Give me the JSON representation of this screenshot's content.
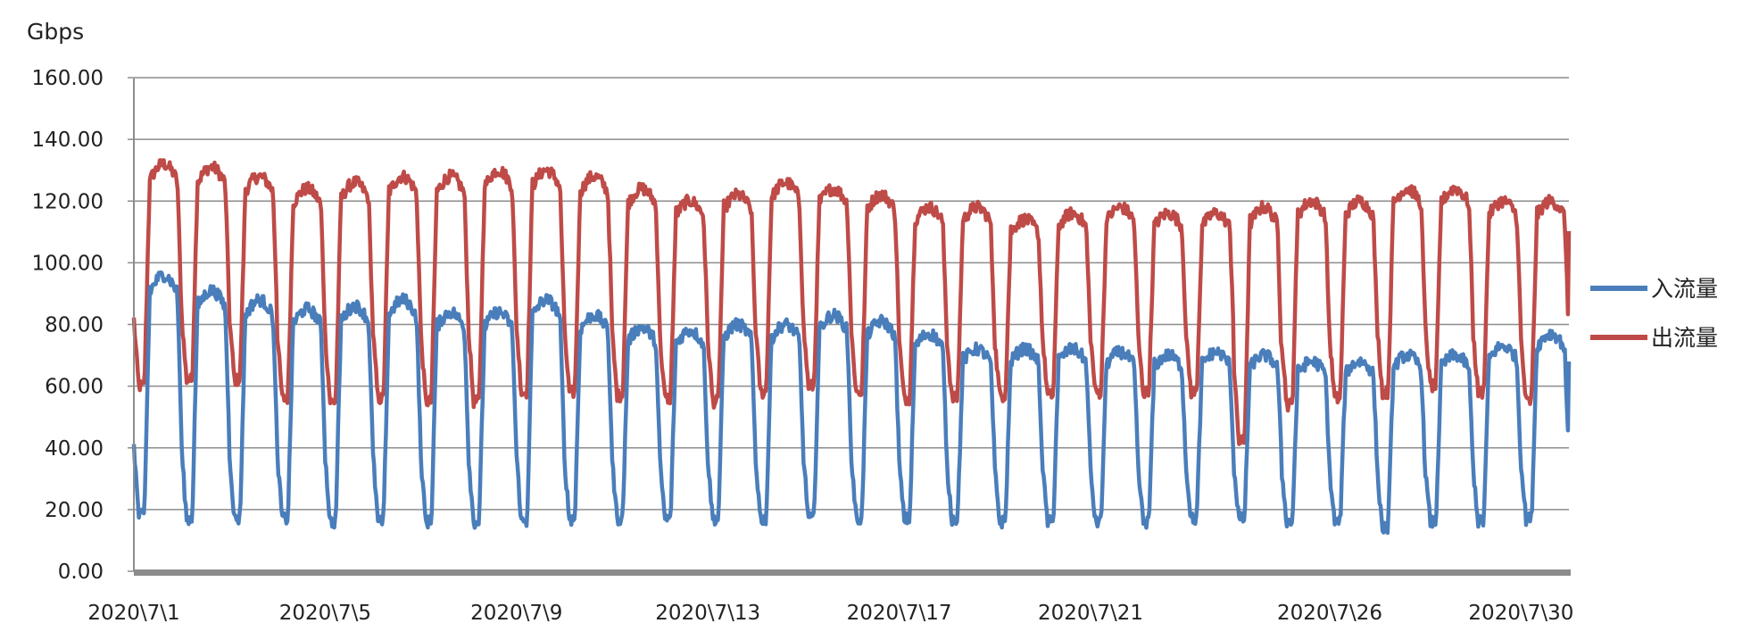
{
  "chart_data": {
    "type": "line",
    "ylabel": "Gbps",
    "ylim": [
      0,
      160
    ],
    "ytick_values": [
      0,
      20,
      40,
      60,
      80,
      100,
      120,
      140,
      160
    ],
    "ytick_labels": [
      "0.00",
      "20.00",
      "40.00",
      "60.00",
      "80.00",
      "100.00",
      "120.00",
      "140.00",
      "160.00"
    ],
    "xtick_days": [
      1,
      5,
      9,
      13,
      17,
      21,
      26,
      30
    ],
    "xtick_labels": [
      "2020\\7\\1",
      "2020\\7\\5",
      "2020\\7\\9",
      "2020\\7\\13",
      "2020\\7\\17",
      "2020\\7\\21",
      "2020\\7\\26",
      "2020\\7\\30"
    ],
    "xlim": [
      1,
      31
    ],
    "grid": "horizontal",
    "legend_position": "right",
    "series": [
      {
        "name": "入流量",
        "color": "#4a7ebb",
        "daily_peak": [
          96,
          91,
          88,
          85,
          86,
          88,
          84,
          84,
          88,
          83,
          79,
          78,
          80,
          80,
          83,
          81,
          77,
          72,
          72,
          72,
          71,
          70,
          71,
          70,
          68,
          68,
          70,
          70,
          73,
          77
        ],
        "daily_trough": [
          18,
          17,
          17,
          17,
          16,
          16,
          16,
          16,
          16,
          17,
          17,
          17,
          17,
          17,
          17,
          17,
          17,
          17,
          16,
          16,
          16,
          16,
          17,
          17,
          16,
          16,
          14,
          16,
          16,
          17
        ]
      },
      {
        "name": "出流量",
        "color": "#be4b48",
        "daily_peak": [
          132,
          131,
          128,
          124,
          126,
          128,
          128,
          130,
          130,
          128,
          124,
          120,
          122,
          126,
          124,
          122,
          118,
          118,
          114,
          116,
          118,
          116,
          116,
          118,
          120,
          120,
          124,
          124,
          120,
          120
        ],
        "daily_trough": [
          60,
          62,
          62,
          56,
          55,
          56,
          55,
          55,
          58,
          58,
          57,
          56,
          55,
          58,
          60,
          58,
          56,
          56,
          57,
          57,
          58,
          58,
          58,
          42,
          54,
          56,
          58,
          60,
          58,
          55
        ]
      }
    ]
  }
}
